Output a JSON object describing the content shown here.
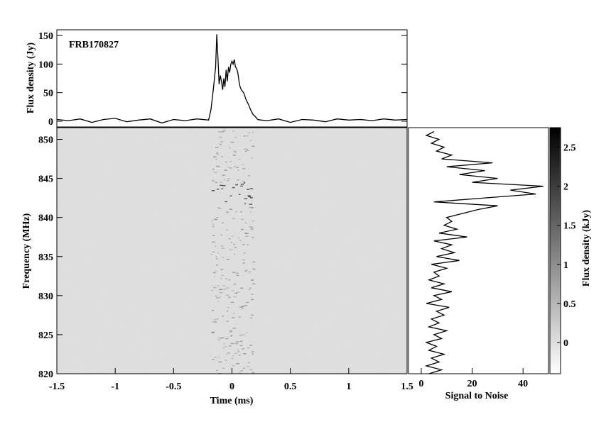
{
  "figure": {
    "background_color": "#ffffff",
    "ink_color": "#000000",
    "waterfall_background": "#e2e2e2",
    "colorbar_gradient": [
      "#ffffff",
      "#000000"
    ]
  },
  "chart_data": [
    {
      "id": "pulse-profile",
      "type": "line",
      "annotation": "FRB170827",
      "xlabel": "",
      "ylabel": "Flux density (Jy)",
      "xlim": [
        -1.5,
        1.5
      ],
      "ylim": [
        -10,
        160
      ],
      "yticks": [
        0,
        50,
        100,
        150
      ],
      "ytick_labels": [
        "0",
        "50",
        "100",
        "150"
      ],
      "series": [
        {
          "x": [
            -1.5,
            -1.4,
            -1.3,
            -1.2,
            -1.1,
            -1.0,
            -0.9,
            -0.8,
            -0.7,
            -0.6,
            -0.5,
            -0.4,
            -0.3,
            -0.2,
            -0.18,
            -0.16,
            -0.14,
            -0.13,
            -0.12,
            -0.11,
            -0.1,
            -0.09,
            -0.08,
            -0.07,
            -0.06,
            -0.05,
            -0.04,
            -0.03,
            -0.02,
            -0.01,
            0.0,
            0.01,
            0.02,
            0.03,
            0.04,
            0.05,
            0.06,
            0.07,
            0.08,
            0.1,
            0.12,
            0.14,
            0.16,
            0.18,
            0.2,
            0.22,
            0.25,
            0.3,
            0.4,
            0.5,
            0.6,
            0.7,
            0.8,
            0.9,
            1.0,
            1.1,
            1.2,
            1.3,
            1.4,
            1.5
          ],
          "y": [
            3,
            1,
            4,
            -2,
            3,
            5,
            -1,
            2,
            4,
            -3,
            3,
            1,
            4,
            2,
            20,
            55,
            95,
            152,
            110,
            65,
            80,
            70,
            55,
            75,
            60,
            90,
            70,
            95,
            85,
            100,
            105,
            100,
            108,
            95,
            92,
            85,
            70,
            60,
            55,
            50,
            38,
            30,
            20,
            12,
            8,
            3,
            2,
            1,
            4,
            -2,
            3,
            2,
            -1,
            4,
            2,
            3,
            1,
            4,
            2,
            3
          ]
        }
      ]
    },
    {
      "id": "waterfall",
      "type": "heatmap",
      "xlabel": "Time (ms)",
      "ylabel": "Frequency (MHz)",
      "xlim": [
        -1.5,
        1.5
      ],
      "ylim": [
        820,
        851.5
      ],
      "xticks": [
        -1.5,
        -1,
        -0.5,
        0,
        0.5,
        1,
        1.5
      ],
      "xtick_labels": [
        "-1.5",
        "-1",
        "-0.5",
        "0",
        "0.5",
        "1",
        "1.5"
      ],
      "yticks": [
        820,
        825,
        830,
        835,
        840,
        845,
        850
      ],
      "ytick_labels": [
        "820",
        "825",
        "830",
        "835",
        "840",
        "845",
        "850"
      ],
      "burst_time_range_ms": [
        -0.18,
        0.18
      ],
      "brightest_band_mhz": [
        841.5,
        844.5
      ]
    },
    {
      "id": "spectrum",
      "type": "line",
      "xlabel": "Signal to Noise",
      "ylabel": "",
      "xlim": [
        -5,
        50
      ],
      "ylim": [
        820,
        851.5
      ],
      "xticks": [
        0,
        20,
        40
      ],
      "xtick_labels": [
        "0",
        "20",
        "40"
      ],
      "series": [
        {
          "freq": [
            820,
            820.5,
            821,
            821.5,
            822,
            822.5,
            823,
            823.5,
            824,
            824.5,
            825,
            825.5,
            826,
            826.5,
            827,
            827.5,
            828,
            828.5,
            829,
            829.5,
            830,
            830.5,
            831,
            831.5,
            832,
            832.5,
            833,
            833.5,
            834,
            834.5,
            835,
            835.5,
            836,
            836.5,
            837,
            837.5,
            838,
            838.5,
            839,
            839.5,
            840,
            840.5,
            841,
            841.5,
            842,
            842.5,
            843,
            843.5,
            844,
            844.5,
            845,
            845.5,
            846,
            846.5,
            847,
            847.5,
            848,
            848.5,
            849,
            849.5,
            850,
            850.5,
            851
          ],
          "snr": [
            3,
            8,
            2,
            7,
            4,
            9,
            3,
            6,
            2,
            8,
            5,
            10,
            3,
            7,
            4,
            9,
            6,
            11,
            2,
            8,
            5,
            12,
            4,
            9,
            3,
            7,
            5,
            10,
            4,
            15,
            6,
            13,
            8,
            12,
            5,
            18,
            7,
            14,
            9,
            12,
            10,
            16,
            22,
            30,
            5,
            25,
            45,
            35,
            48,
            20,
            30,
            15,
            25,
            10,
            28,
            8,
            12,
            6,
            9,
            4,
            7,
            2,
            5
          ]
        }
      ]
    },
    {
      "id": "colorbar",
      "type": "heatmap",
      "ylabel": "Flux density (kJy)",
      "ylim": [
        -0.4,
        2.75
      ],
      "yticks": [
        0,
        0.5,
        1,
        1.5,
        2,
        2.5
      ],
      "ytick_labels": [
        "0",
        "0.5",
        "1",
        "1.5",
        "2",
        "2.5"
      ]
    }
  ]
}
